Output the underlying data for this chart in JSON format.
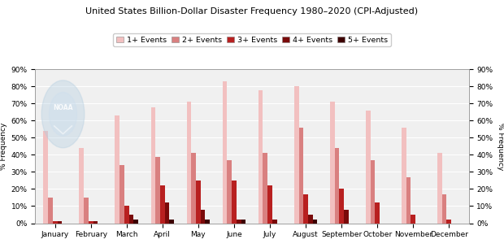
{
  "title": "United States Billion-Dollar Disaster Frequency 1980–2020 (CPI-Adjusted)",
  "months": [
    "January",
    "February",
    "March",
    "April",
    "May",
    "June",
    "July",
    "August",
    "September",
    "October",
    "November",
    "December"
  ],
  "series": {
    "1+ Events": [
      54,
      44,
      63,
      68,
      71,
      83,
      78,
      80,
      71,
      66,
      56,
      41
    ],
    "2+ Events": [
      15,
      15,
      34,
      39,
      41,
      37,
      41,
      56,
      44,
      37,
      27,
      17
    ],
    "3+ Events": [
      1,
      1,
      10,
      22,
      25,
      25,
      22,
      17,
      20,
      12,
      5,
      2
    ],
    "4+ Events": [
      1,
      1,
      5,
      12,
      8,
      2,
      2,
      5,
      8,
      0,
      0,
      0
    ],
    "5+ Events": [
      0,
      0,
      2,
      2,
      2,
      2,
      0,
      2,
      0,
      0,
      0,
      0
    ]
  },
  "colors": {
    "1+ Events": "#f2c0c0",
    "2+ Events": "#d98080",
    "3+ Events": "#b82020",
    "4+ Events": "#7a0a0a",
    "5+ Events": "#3d0000"
  },
  "legend_order": [
    "1+ Events",
    "2+ Events",
    "3+ Events",
    "4+ Events",
    "5+ Events"
  ],
  "ylabel_left": "% Frequency",
  "ylabel_right": "% Frequency",
  "ylim": [
    0,
    90
  ],
  "yticks": [
    0,
    10,
    20,
    30,
    40,
    50,
    60,
    70,
    80,
    90
  ],
  "yticklabels": [
    "0%",
    "10%",
    "20%",
    "30%",
    "40%",
    "50%",
    "60%",
    "70%",
    "80%",
    "90%"
  ],
  "background_color": "#ffffff",
  "plot_bg_color": "#f0f0f0",
  "grid_color": "#ffffff",
  "title_fontsize": 8.0,
  "axis_fontsize": 6.5,
  "legend_fontsize": 6.8,
  "bar_width": 0.13
}
